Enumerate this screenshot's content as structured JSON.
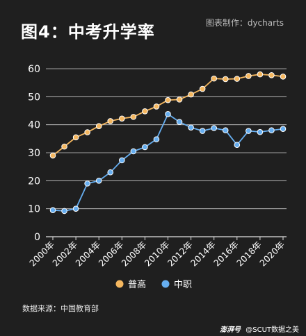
{
  "header": {
    "title": "图4：中考升学率",
    "credit": "图表制作：dycharts"
  },
  "footer": {
    "source": "数据来源：中国教育部",
    "watermark_logo": "澎湃号",
    "watermark_text": "@SCUT数据之美"
  },
  "colors": {
    "background": "#1f1f1f",
    "putong": "#f5b75f",
    "zhongzhi": "#66aef0",
    "grid": "#cfcfcf"
  },
  "chart_data": {
    "type": "line",
    "title": "图4：中考升学率",
    "xlabel": "",
    "ylabel": "",
    "ylim": [
      0,
      60
    ],
    "yticks": [
      0,
      10,
      20,
      30,
      40,
      50,
      60
    ],
    "grid": true,
    "legend_position": "bottom",
    "x": [
      "2000年",
      "2001年",
      "2002年",
      "2003年",
      "2004年",
      "2005年",
      "2006年",
      "2007年",
      "2008年",
      "2009年",
      "2010年",
      "2011年",
      "2012年",
      "2013年",
      "2014年",
      "2015年",
      "2016年",
      "2017年",
      "2018年",
      "2019年",
      "2020年"
    ],
    "xtick_labels": [
      "2000年",
      "2002年",
      "2004年",
      "2006年",
      "2008年",
      "2010年",
      "2012年",
      "2014年",
      "2016年",
      "2018年",
      "2020年"
    ],
    "series": [
      {
        "name": "普高",
        "color": "#f5b75f",
        "values": [
          29.0,
          32.2,
          35.5,
          37.3,
          39.5,
          41.3,
          42.2,
          42.8,
          44.8,
          46.5,
          48.8,
          49.0,
          50.8,
          52.8,
          56.5,
          56.3,
          56.4,
          57.4,
          58.0,
          57.7,
          57.2
        ]
      },
      {
        "name": "中职",
        "color": "#66aef0",
        "values": [
          9.5,
          9.2,
          10.0,
          19.0,
          20.0,
          23.0,
          27.3,
          30.5,
          32.0,
          34.8,
          43.8,
          41.0,
          39.0,
          37.8,
          38.8,
          38.0,
          32.8,
          37.8,
          37.4,
          38.0,
          38.5
        ]
      }
    ]
  }
}
